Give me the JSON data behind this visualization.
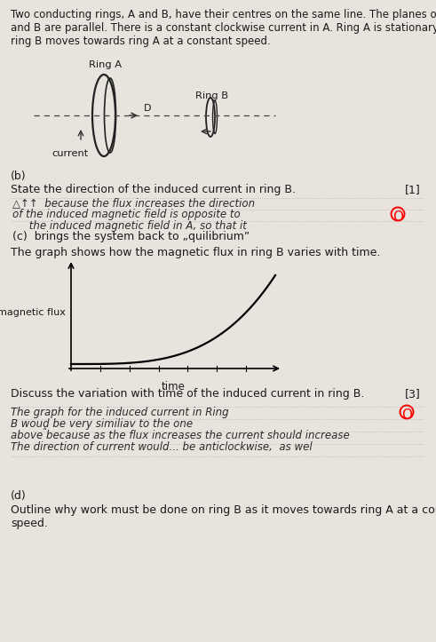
{
  "bg_color": "#e8e3dd",
  "title_text": "Two conducting rings, A and B, have their centres on the same line. The planes of A\nand B are parallel. There is a constant clockwise current in A. Ring A is stationary and\nring B moves towards ring A at a constant speed.",
  "ring_a_label": "Ring A",
  "ring_b_label": "Ring B",
  "current_label": "current",
  "section_b_label": "(b)",
  "section_b_text": "State the direction of the induced current in ring B.",
  "section_b_marks": "[1]",
  "answer_b_line1": "△↑↑  because the flux increases the direction",
  "answer_b_line2": "of the induced magnetic field is opposite to",
  "answer_b_line3": "     the induced magnetic field in A, so that it",
  "section_c_continues": "(c)  brings the system back to „quilibrium”",
  "section_c_intro": "The graph shows how the magnetic flux in ring B varies with time.",
  "graph_xlabel": "time",
  "graph_ylabel": "magnetic flux",
  "section_c_discuss": "Discuss the variation with time of the induced current in ring B.",
  "section_c_marks": "[3]",
  "answer_c_line1": "The graph for the induced current in Ring",
  "answer_c_line2": "B wouḓ be very similiav to the one",
  "answer_c_line3": "above because as the flux increases the current should increase",
  "answer_c_line4": "The direction of current would... be anticlockwise,  as wel",
  "section_d_label": "(d)",
  "section_d_text": "Outline why work must be done on ring B as it moves towards ring A at a constant\nspeed."
}
